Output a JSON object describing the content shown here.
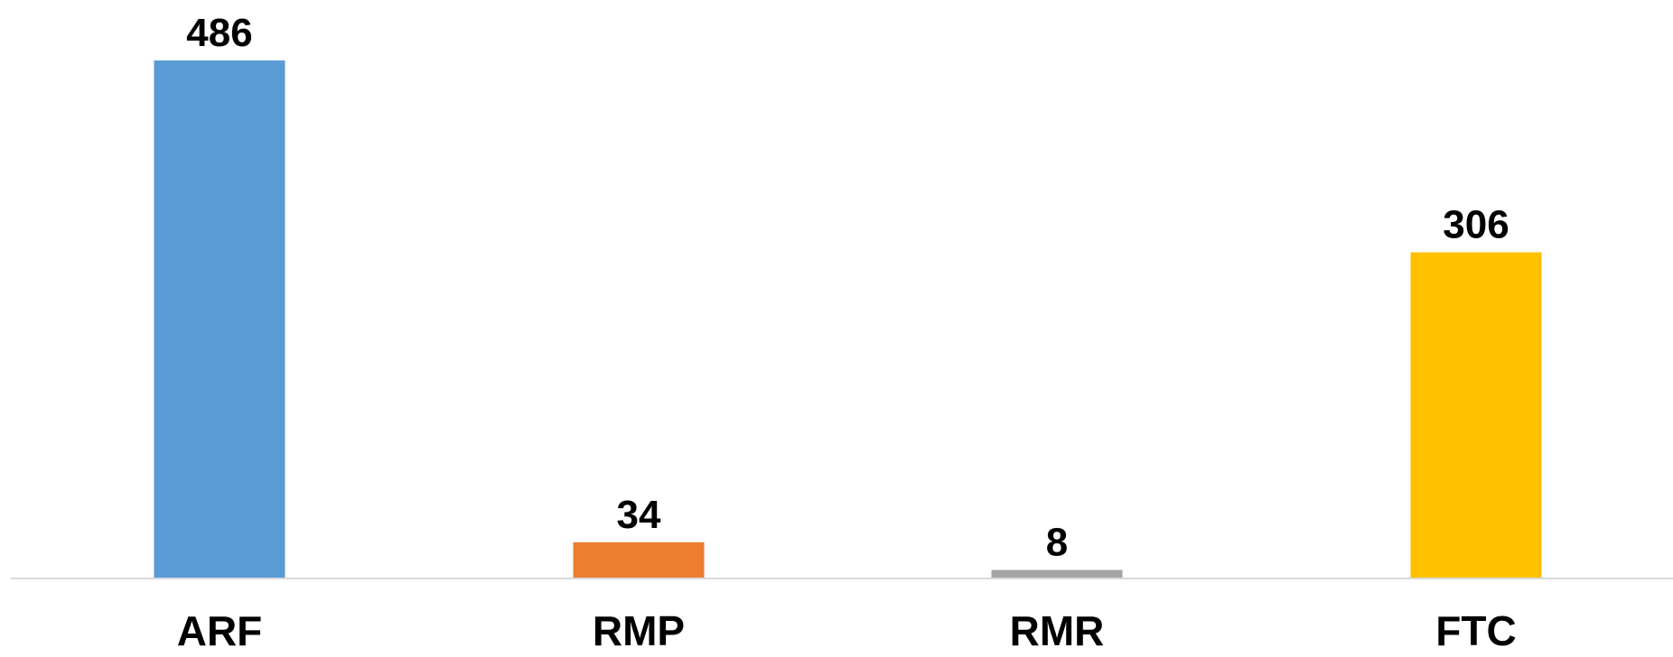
{
  "chart_data": {
    "type": "bar",
    "title": "",
    "xlabel": "",
    "ylabel": "",
    "categories": [
      "ARF",
      "RMP",
      "RMR",
      "FTC"
    ],
    "values": [
      486,
      34,
      8,
      306
    ],
    "data_labels": [
      "486",
      "34",
      "8",
      "306"
    ],
    "colors": [
      "#5B9BD5",
      "#ED7D31",
      "#A5A5A5",
      "#FFC000"
    ],
    "ylim": [
      0,
      486
    ],
    "grid": false,
    "legend": "none",
    "axis_color": "#D9D9D9"
  }
}
